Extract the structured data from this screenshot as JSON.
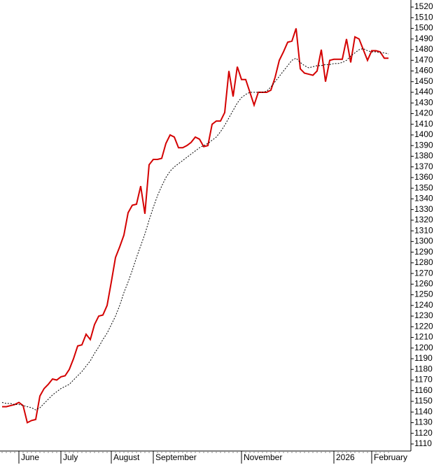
{
  "chart_data": {
    "type": "line",
    "categories": [
      null,
      null,
      null,
      null,
      "June",
      null,
      null,
      null,
      null,
      null,
      null,
      null,
      null,
      null,
      "July",
      null,
      null,
      null,
      null,
      null,
      null,
      null,
      null,
      null,
      null,
      null,
      "August",
      null,
      null,
      null,
      null,
      null,
      null,
      null,
      null,
      null,
      "September",
      null,
      null,
      null,
      null,
      null,
      null,
      null,
      null,
      null,
      null,
      null,
      null,
      null,
      null,
      null,
      null,
      null,
      null,
      null,
      null,
      "November",
      null,
      null,
      null,
      null,
      null,
      null,
      null,
      null,
      null,
      null,
      null,
      null,
      null,
      null,
      null,
      null,
      null,
      null,
      null,
      null,
      null,
      "2026",
      null,
      null,
      null,
      null,
      null,
      null,
      null,
      null,
      "February",
      null,
      null,
      null,
      null
    ],
    "series": [
      {
        "color": "#d40000",
        "style": "solid",
        "values": [
          1145,
          1145,
          1146,
          1147,
          1149,
          1146,
          1130,
          1132,
          1133,
          1155,
          1162,
          1166,
          1171,
          1170,
          1173,
          1174,
          1180,
          1190,
          1202,
          1203,
          1213,
          1208,
          1222,
          1230,
          1231,
          1240,
          1262,
          1285,
          1295,
          1306,
          1327,
          1334,
          1335,
          1352,
          1326,
          1372,
          1377,
          1377,
          1378,
          1392,
          1400,
          1398,
          1388,
          1388,
          1390,
          1393,
          1398,
          1396,
          1389,
          1390,
          1410,
          1413,
          1413,
          1421,
          1460,
          1436,
          1464,
          1452,
          1452,
          1440,
          1428,
          1440,
          1440,
          1440,
          1442,
          1454,
          1470,
          1478,
          1487,
          1488,
          1500,
          1462,
          1458,
          1457,
          1456,
          1460,
          1480,
          1450,
          1470,
          1471,
          1471,
          1471,
          1490,
          1468,
          1492,
          1490,
          1480,
          1470,
          1479,
          1479,
          1478,
          1472,
          1472
        ]
      },
      {
        "color": "#000000",
        "style": "dashed",
        "values": [
          1149,
          1148,
          1148,
          1147,
          1147,
          1146,
          1145,
          1144,
          1142,
          1144,
          1148,
          1152,
          1156,
          1159,
          1162,
          1164,
          1166,
          1170,
          1174,
          1178,
          1183,
          1188,
          1195,
          1201,
          1208,
          1214,
          1222,
          1230,
          1240,
          1252,
          1262,
          1273,
          1285,
          1296,
          1307,
          1320,
          1332,
          1343,
          1352,
          1360,
          1366,
          1370,
          1373,
          1376,
          1379,
          1382,
          1385,
          1388,
          1390,
          1392,
          1395,
          1398,
          1403,
          1409,
          1416,
          1423,
          1430,
          1435,
          1438,
          1440,
          1440,
          1440,
          1440,
          1441,
          1445,
          1450,
          1455,
          1460,
          1465,
          1470,
          1472,
          1468,
          1465,
          1463,
          1464,
          1465,
          1465,
          1466,
          1466,
          1467,
          1467,
          1468,
          1470,
          1474,
          1477,
          1480,
          1481,
          1479,
          1478,
          1478,
          1477,
          1477,
          1476
        ]
      }
    ],
    "ylim": [
      1103.4,
      1526.6
    ],
    "yticks": [
      1110,
      1120,
      1130,
      1140,
      1150,
      1160,
      1170,
      1180,
      1190,
      1200,
      1210,
      1220,
      1230,
      1240,
      1250,
      1260,
      1270,
      1280,
      1290,
      1300,
      1310,
      1320,
      1330,
      1340,
      1350,
      1360,
      1370,
      1380,
      1390,
      1400,
      1410,
      1420,
      1430,
      1440,
      1450,
      1460,
      1470,
      1480,
      1490,
      1500,
      1510,
      1520
    ]
  }
}
